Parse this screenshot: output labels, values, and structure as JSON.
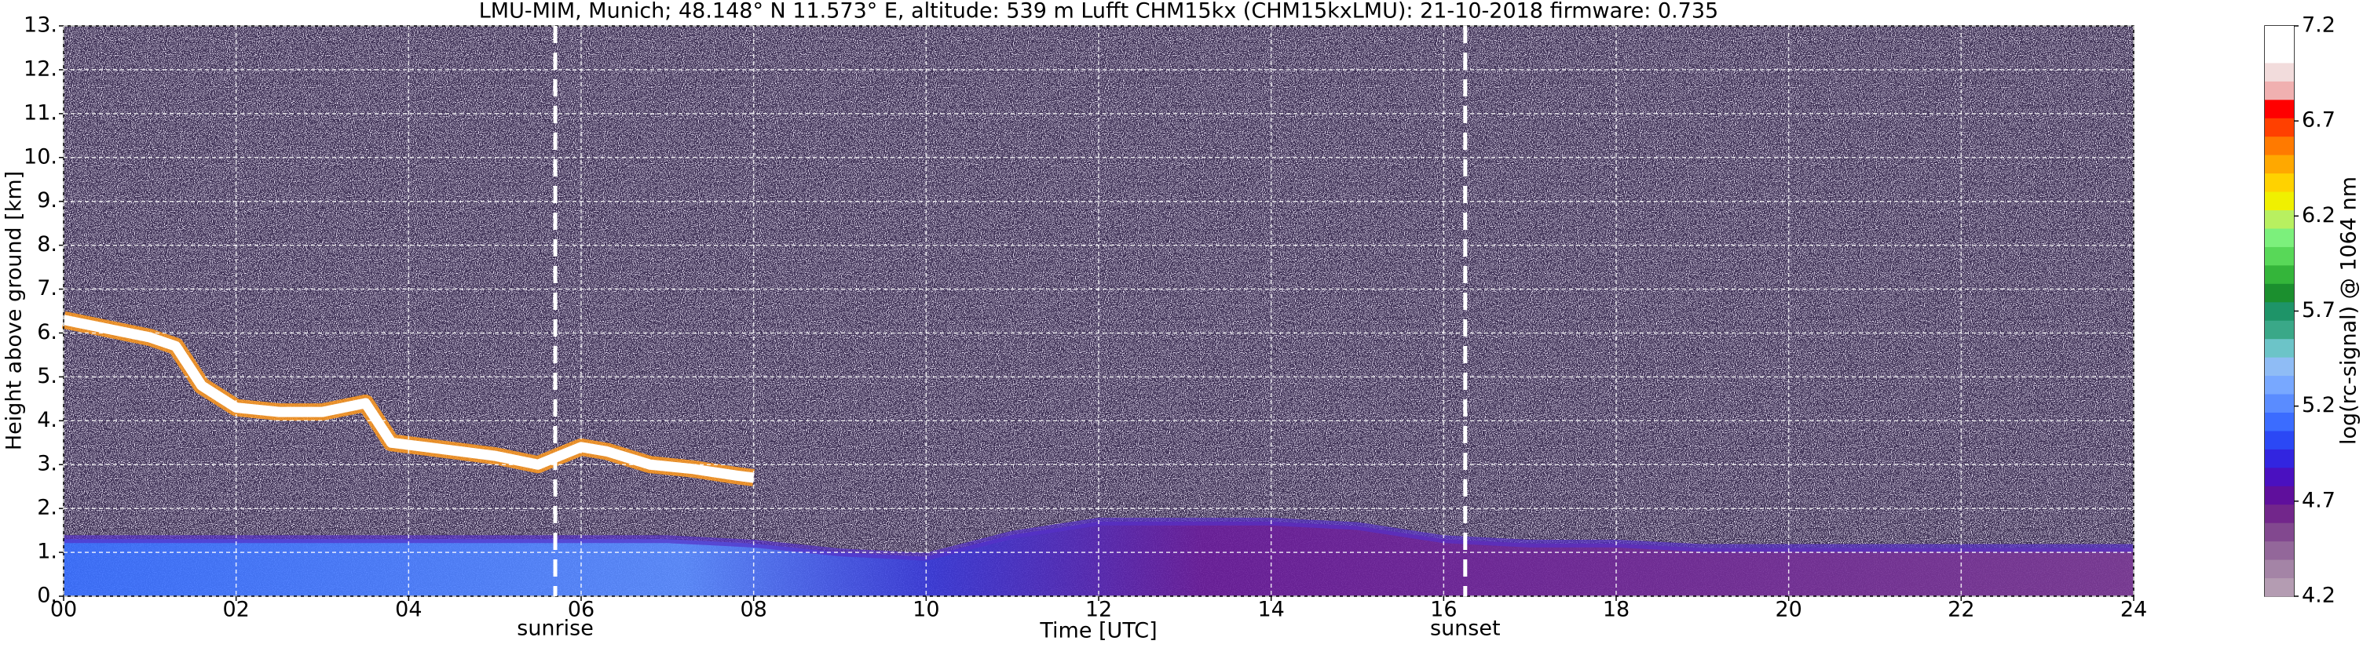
{
  "chart_data": {
    "type": "heatmap",
    "title": "LMU-MIM, Munich; 48.148° N 11.573° E, altitude: 539 m    Lufft CHM15kx (CHM15kxLMU): 21-10-2018    firmware: 0.735",
    "xlabel": "Time [UTC]",
    "ylabel": "Height above ground [km]",
    "xlim": [
      0,
      24
    ],
    "xticks": [
      {
        "value": 0,
        "label": "00"
      },
      {
        "value": 2,
        "label": "02"
      },
      {
        "value": 4,
        "label": "04"
      },
      {
        "value": 6,
        "label": "06"
      },
      {
        "value": 8,
        "label": "08"
      },
      {
        "value": 10,
        "label": "10"
      },
      {
        "value": 12,
        "label": "12"
      },
      {
        "value": 14,
        "label": "14"
      },
      {
        "value": 16,
        "label": "16"
      },
      {
        "value": 18,
        "label": "18"
      },
      {
        "value": 20,
        "label": "20"
      },
      {
        "value": 22,
        "label": "22"
      },
      {
        "value": 24,
        "label": "24"
      }
    ],
    "ylim": [
      0,
      13
    ],
    "yticks": [
      {
        "value": 0,
        "label": "0."
      },
      {
        "value": 1,
        "label": "1."
      },
      {
        "value": 2,
        "label": "2."
      },
      {
        "value": 3,
        "label": "3."
      },
      {
        "value": 4,
        "label": "4."
      },
      {
        "value": 5,
        "label": "5."
      },
      {
        "value": 6,
        "label": "6."
      },
      {
        "value": 7,
        "label": "7."
      },
      {
        "value": 8,
        "label": "8."
      },
      {
        "value": 9,
        "label": "9."
      },
      {
        "value": 10,
        "label": "10."
      },
      {
        "value": 11,
        "label": "11."
      },
      {
        "value": 12,
        "label": "12."
      },
      {
        "value": 13,
        "label": "13."
      }
    ],
    "grid": true,
    "colorbar_label": "log(rc-signal) @ 1064 nm",
    "clim": [
      4.2,
      7.2
    ],
    "cticks": [
      4.2,
      4.7,
      5.2,
      5.7,
      6.2,
      6.7,
      7.2
    ],
    "colorbar_colors": [
      "#b49cb2",
      "#a484a6",
      "#93679a",
      "#82488f",
      "#72268b",
      "#5f0f9c",
      "#4a10c0",
      "#3225e0",
      "#2b48f5",
      "#3b6cff",
      "#5a8cff",
      "#78a8ff",
      "#8fbcf5",
      "#6cc4c8",
      "#3aa888",
      "#1e9468",
      "#1b8f2e",
      "#34b53a",
      "#58d858",
      "#7cf07c",
      "#b8f060",
      "#f0f000",
      "#ffd200",
      "#ffa800",
      "#ff7a00",
      "#ff4000",
      "#ff0000",
      "#f0b0b0",
      "#f2dcdc",
      "#ffffff",
      "#ffffff"
    ],
    "boundary_layer": {
      "x": [
        0,
        1,
        2,
        3,
        4,
        5,
        6,
        7,
        8,
        9,
        10,
        11,
        12,
        13,
        14,
        15,
        16,
        17,
        18,
        19,
        20,
        21,
        22,
        23,
        24
      ],
      "values": [
        1.3,
        1.3,
        1.3,
        1.3,
        1.3,
        1.3,
        1.3,
        1.3,
        1.2,
        1.0,
        0.9,
        1.4,
        1.7,
        1.7,
        1.7,
        1.6,
        1.3,
        1.2,
        1.2,
        1.1,
        1.1,
        1.1,
        1.1,
        1.1,
        1.1
      ],
      "color": "#5530c8"
    },
    "layer": {
      "x": [
        0,
        0.5,
        1,
        1.3,
        1.6,
        2,
        2.5,
        3,
        3.5,
        3.8,
        4.2,
        4.6,
        5,
        5.5,
        6,
        6.3,
        6.8,
        7.3,
        7.8,
        8
      ],
      "values": [
        6.3,
        6.1,
        5.9,
        5.7,
        4.8,
        4.3,
        4.2,
        4.2,
        4.4,
        3.5,
        3.4,
        3.3,
        3.2,
        3.0,
        3.4,
        3.3,
        3.0,
        2.9,
        2.75,
        2.7
      ],
      "color": "#ffffff"
    },
    "annotations": [
      {
        "text": "sunrise",
        "x": 5.7
      },
      {
        "text": "sunset",
        "x": 16.25
      }
    ]
  }
}
